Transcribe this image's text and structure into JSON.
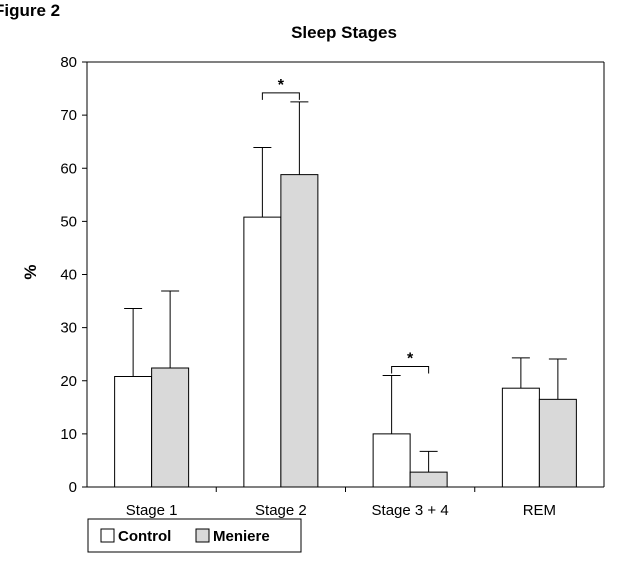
{
  "figure_label": "Figure 2",
  "chart_data": {
    "type": "bar",
    "title": "Sleep Stages",
    "xlabel": "",
    "ylabel": "%",
    "ylim": [
      0,
      80
    ],
    "yticks": [
      0,
      10,
      20,
      30,
      40,
      50,
      60,
      70,
      80
    ],
    "categories": [
      "Stage 1",
      "Stage 2",
      "Stage 3 + 4",
      "REM"
    ],
    "series": [
      {
        "name": "Control",
        "values": [
          20.8,
          50.8,
          10.0,
          18.6
        ],
        "errors": [
          12.8,
          13.1,
          11.0,
          5.7
        ],
        "color": "#ffffff"
      },
      {
        "name": "Meniere",
        "values": [
          22.4,
          58.8,
          2.8,
          16.5
        ],
        "errors": [
          14.5,
          13.7,
          3.9,
          7.6
        ],
        "color": "#d9d9d9"
      }
    ],
    "annotations": [
      {
        "text": "*",
        "category": "Stage 2"
      },
      {
        "text": "*",
        "category": "Stage 3 + 4"
      }
    ],
    "legend_position": "bottom-left",
    "grid": false
  }
}
